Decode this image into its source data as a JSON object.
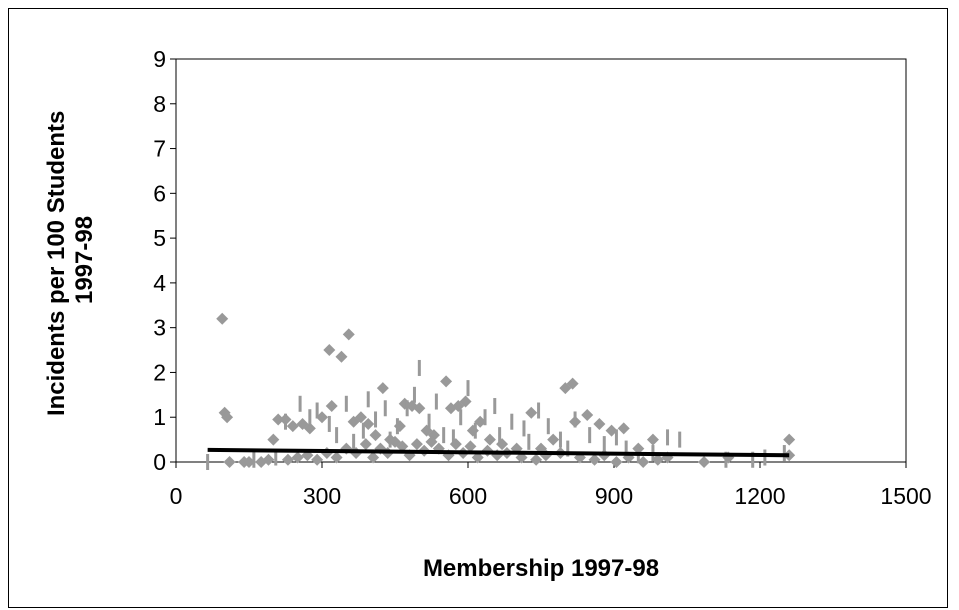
{
  "chart_data": {
    "type": "scatter",
    "title": "",
    "xlabel": "Membership 1997-98",
    "ylabel_lines": [
      "Incidents per 100 Students",
      "1997-98"
    ],
    "xlim": [
      0,
      1500
    ],
    "ylim": [
      0,
      9
    ],
    "x_ticks": [
      0,
      300,
      600,
      900,
      1200,
      1500
    ],
    "y_ticks": [
      0,
      1,
      2,
      3,
      4,
      5,
      6,
      7,
      8,
      9
    ],
    "grid": false,
    "legend": "none",
    "colors": {
      "points": "#999999",
      "trend": "#000000",
      "axes": "#000000"
    },
    "series": [
      {
        "marker": "diamond",
        "points": [
          [
            95,
            3.2
          ],
          [
            100,
            1.1
          ],
          [
            105,
            1.0
          ],
          [
            110,
            0.0
          ],
          [
            140,
            0.0
          ],
          [
            175,
            0.0
          ],
          [
            200,
            0.5
          ],
          [
            210,
            0.95
          ],
          [
            225,
            0.95
          ],
          [
            240,
            0.8
          ],
          [
            260,
            0.85
          ],
          [
            275,
            0.75
          ],
          [
            300,
            1.0
          ],
          [
            315,
            2.5
          ],
          [
            320,
            1.25
          ],
          [
            340,
            2.35
          ],
          [
            355,
            2.85
          ],
          [
            365,
            0.9
          ],
          [
            380,
            1.0
          ],
          [
            395,
            0.85
          ],
          [
            410,
            0.6
          ],
          [
            425,
            1.65
          ],
          [
            440,
            0.5
          ],
          [
            460,
            0.8
          ],
          [
            470,
            1.3
          ],
          [
            485,
            1.25
          ],
          [
            500,
            1.2
          ],
          [
            515,
            0.7
          ],
          [
            530,
            0.6
          ],
          [
            555,
            1.8
          ],
          [
            565,
            1.2
          ],
          [
            580,
            1.25
          ],
          [
            595,
            1.35
          ],
          [
            610,
            0.7
          ],
          [
            625,
            0.9
          ],
          [
            645,
            0.5
          ],
          [
            670,
            0.4
          ],
          [
            700,
            0.3
          ],
          [
            730,
            1.1
          ],
          [
            750,
            0.3
          ],
          [
            775,
            0.5
          ],
          [
            800,
            1.65
          ],
          [
            815,
            1.75
          ],
          [
            820,
            0.9
          ],
          [
            845,
            1.05
          ],
          [
            870,
            0.85
          ],
          [
            895,
            0.7
          ],
          [
            920,
            0.75
          ],
          [
            950,
            0.3
          ],
          [
            980,
            0.5
          ],
          [
            1085,
            0.0
          ],
          [
            1135,
            0.1
          ],
          [
            1260,
            0.5
          ],
          [
            1260,
            0.15
          ],
          [
            150,
            0.0
          ],
          [
            190,
            0.05
          ],
          [
            230,
            0.05
          ],
          [
            250,
            0.1
          ],
          [
            270,
            0.15
          ],
          [
            290,
            0.05
          ],
          [
            310,
            0.2
          ],
          [
            330,
            0.1
          ],
          [
            350,
            0.3
          ],
          [
            370,
            0.2
          ],
          [
            390,
            0.4
          ],
          [
            405,
            0.1
          ],
          [
            420,
            0.3
          ],
          [
            435,
            0.2
          ],
          [
            450,
            0.45
          ],
          [
            465,
            0.35
          ],
          [
            480,
            0.15
          ],
          [
            495,
            0.4
          ],
          [
            510,
            0.25
          ],
          [
            525,
            0.45
          ],
          [
            540,
            0.3
          ],
          [
            560,
            0.15
          ],
          [
            575,
            0.4
          ],
          [
            590,
            0.2
          ],
          [
            605,
            0.35
          ],
          [
            620,
            0.1
          ],
          [
            640,
            0.25
          ],
          [
            660,
            0.15
          ],
          [
            680,
            0.2
          ],
          [
            710,
            0.1
          ],
          [
            740,
            0.05
          ],
          [
            760,
            0.15
          ],
          [
            790,
            0.2
          ],
          [
            830,
            0.1
          ],
          [
            860,
            0.05
          ],
          [
            880,
            0.15
          ],
          [
            905,
            0.0
          ],
          [
            930,
            0.1
          ],
          [
            960,
            0.0
          ],
          [
            990,
            0.05
          ],
          [
            1010,
            0.1
          ]
        ]
      },
      {
        "marker": "dash",
        "points": [
          [
            65,
            0.0
          ],
          [
            160,
            0.05
          ],
          [
            205,
            0.1
          ],
          [
            225,
            0.9
          ],
          [
            255,
            1.3
          ],
          [
            275,
            1.0
          ],
          [
            290,
            1.15
          ],
          [
            315,
            0.85
          ],
          [
            330,
            0.6
          ],
          [
            350,
            1.3
          ],
          [
            365,
            0.45
          ],
          [
            385,
            0.7
          ],
          [
            395,
            1.4
          ],
          [
            410,
            0.95
          ],
          [
            430,
            1.2
          ],
          [
            440,
            0.5
          ],
          [
            455,
            0.8
          ],
          [
            475,
            1.2
          ],
          [
            490,
            1.5
          ],
          [
            500,
            2.1
          ],
          [
            520,
            0.9
          ],
          [
            535,
            1.35
          ],
          [
            550,
            0.6
          ],
          [
            570,
            0.55
          ],
          [
            585,
            1.0
          ],
          [
            600,
            1.65
          ],
          [
            615,
            0.7
          ],
          [
            635,
            1.0
          ],
          [
            655,
            1.25
          ],
          [
            665,
            0.6
          ],
          [
            690,
            0.9
          ],
          [
            715,
            0.75
          ],
          [
            725,
            0.45
          ],
          [
            745,
            1.15
          ],
          [
            765,
            0.8
          ],
          [
            790,
            0.5
          ],
          [
            805,
            0.3
          ],
          [
            820,
            0.95
          ],
          [
            850,
            0.6
          ],
          [
            880,
            0.4
          ],
          [
            905,
            0.55
          ],
          [
            925,
            0.3
          ],
          [
            950,
            0.15
          ],
          [
            980,
            0.2
          ],
          [
            1010,
            0.55
          ],
          [
            1035,
            0.5
          ],
          [
            1130,
            0.05
          ],
          [
            1185,
            0.05
          ],
          [
            1210,
            0.1
          ],
          [
            1250,
            0.2
          ]
        ]
      }
    ],
    "trend_line": {
      "x": [
        65,
        1260
      ],
      "y": [
        0.27,
        0.15
      ]
    }
  }
}
